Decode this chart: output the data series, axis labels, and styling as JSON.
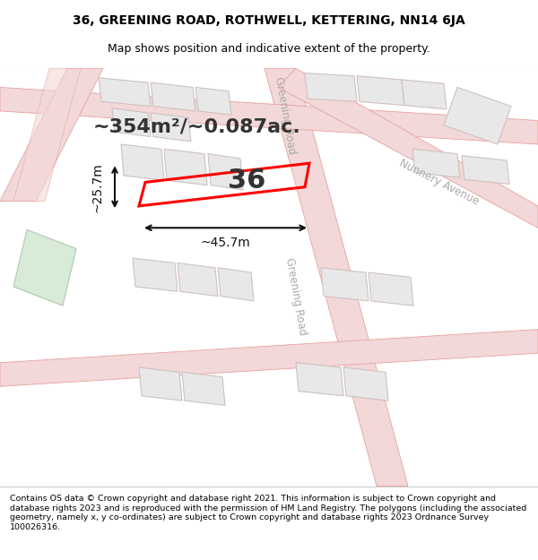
{
  "title_line1": "36, GREENING ROAD, ROTHWELL, KETTERING, NN14 6JA",
  "title_line2": "Map shows position and indicative extent of the property.",
  "footer_text": "Contains OS data © Crown copyright and database right 2021. This information is subject to Crown copyright and database rights 2023 and is reproduced with the permission of HM Land Registry. The polygons (including the associated geometry, namely x, y co-ordinates) are subject to Crown copyright and database rights 2023 Ordnance Survey 100026316.",
  "area_text": "~354m²/~0.087ac.",
  "label_36": "36",
  "dim_width": "~45.7m",
  "dim_height": "~25.7m",
  "bg_color": "#ffffff",
  "map_bg": "#f8f8f8",
  "road_fill": "#f2d8d8",
  "road_edge": "#e8a0a0",
  "building_fill": "#e8e8e8",
  "building_edge": "#d0c0c0",
  "green_fill": "#d8ead8",
  "green_edge": "#b0c8b0",
  "plot_color": "#ff0000",
  "dim_color": "#111111",
  "label_color": "#333333",
  "road_label_color": "#aaaaaa",
  "title_fontsize": 10,
  "subtitle_fontsize": 9,
  "area_fontsize": 16,
  "num_fontsize": 22,
  "dim_fontsize": 10,
  "road_label_fontsize": 8.5,
  "footer_fontsize": 6.8
}
